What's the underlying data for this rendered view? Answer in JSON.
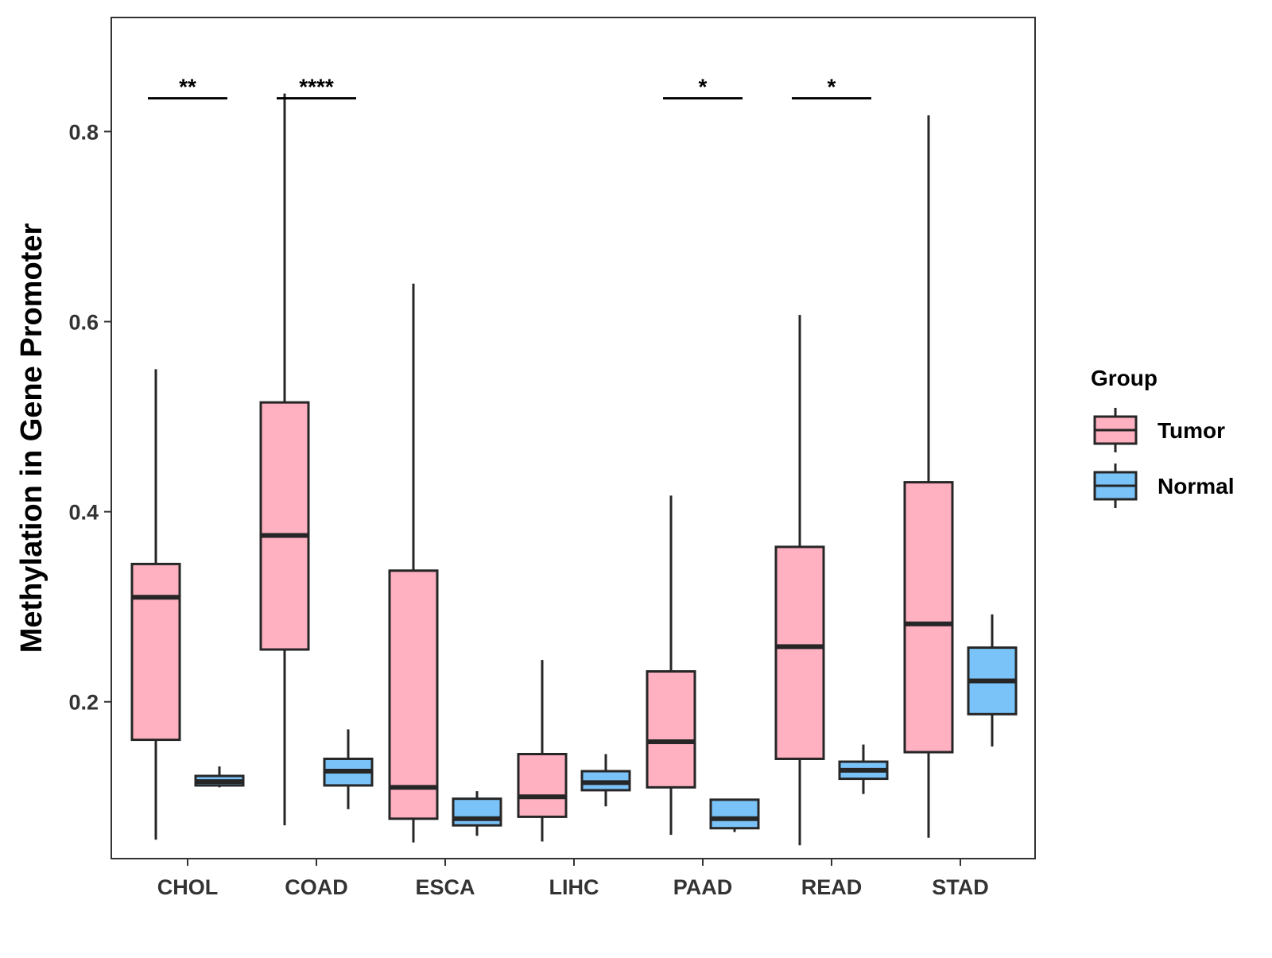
{
  "chart_data": {
    "type": "boxplot",
    "title": "",
    "xlabel": "",
    "ylabel": "Methylation in Gene Promoter",
    "ylim": [
      0.035,
      0.92
    ],
    "yticks": [
      0.2,
      0.4,
      0.6,
      0.8
    ],
    "ytick_labels": [
      "0.2",
      "0.4",
      "0.6",
      "0.8"
    ],
    "categories": [
      "CHOL",
      "COAD",
      "ESCA",
      "LIHC",
      "PAAD",
      "READ",
      "STAD"
    ],
    "legend": {
      "title": "Group",
      "position": "right",
      "entries": [
        {
          "name": "Tumor",
          "color": "#ffb0c1"
        },
        {
          "name": "Normal",
          "color": "#7ac3f8"
        }
      ]
    },
    "series": [
      {
        "name": "Tumor",
        "color": "#ffb0c1",
        "boxes": [
          {
            "min": 0.055,
            "q1": 0.16,
            "median": 0.31,
            "q3": 0.345,
            "max": 0.55
          },
          {
            "min": 0.07,
            "q1": 0.255,
            "median": 0.375,
            "q3": 0.515,
            "max": 0.84
          },
          {
            "min": 0.052,
            "q1": 0.077,
            "median": 0.11,
            "q3": 0.338,
            "max": 0.64
          },
          {
            "min": 0.053,
            "q1": 0.079,
            "median": 0.1,
            "q3": 0.145,
            "max": 0.244
          },
          {
            "min": 0.06,
            "q1": 0.11,
            "median": 0.158,
            "q3": 0.232,
            "max": 0.417
          },
          {
            "min": 0.049,
            "q1": 0.14,
            "median": 0.258,
            "q3": 0.363,
            "max": 0.607
          },
          {
            "min": 0.057,
            "q1": 0.147,
            "median": 0.282,
            "q3": 0.431,
            "max": 0.817
          }
        ]
      },
      {
        "name": "Normal",
        "color": "#7ac3f8",
        "boxes": [
          {
            "min": 0.11,
            "q1": 0.112,
            "median": 0.116,
            "q3": 0.122,
            "max": 0.132
          },
          {
            "min": 0.087,
            "q1": 0.112,
            "median": 0.127,
            "q3": 0.14,
            "max": 0.171
          },
          {
            "min": 0.059,
            "q1": 0.07,
            "median": 0.077,
            "q3": 0.098,
            "max": 0.106
          },
          {
            "min": 0.09,
            "q1": 0.107,
            "median": 0.115,
            "q3": 0.127,
            "max": 0.145
          },
          {
            "min": 0.063,
            "q1": 0.067,
            "median": 0.077,
            "q3": 0.097,
            "max": 0.097
          },
          {
            "min": 0.103,
            "q1": 0.119,
            "median": 0.128,
            "q3": 0.137,
            "max": 0.155
          },
          {
            "min": 0.153,
            "q1": 0.187,
            "median": 0.222,
            "q3": 0.257,
            "max": 0.292
          }
        ]
      }
    ],
    "significance": [
      {
        "category": "CHOL",
        "label": "**",
        "y": 0.835
      },
      {
        "category": "COAD",
        "label": "****",
        "y": 0.835
      },
      {
        "category": "PAAD",
        "label": "*",
        "y": 0.835
      },
      {
        "category": "READ",
        "label": "*",
        "y": 0.835
      }
    ]
  }
}
